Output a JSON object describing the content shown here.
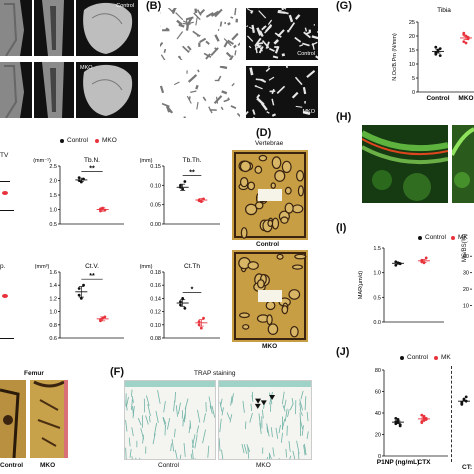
{
  "panels": {
    "B": "(B)",
    "D": "(D)",
    "F": "(F)",
    "G": "(G)",
    "H": "(H)",
    "I": "(I)",
    "J": "(J)"
  },
  "micro_ct": {
    "control_label": "Control",
    "mko_label": "MKO"
  },
  "panel_b": {
    "control_label": "Control",
    "mko_label": "MKO"
  },
  "panel_d": {
    "title": "Vertebrae",
    "control_label": "Control",
    "mko_label": "MKO"
  },
  "femur": {
    "title": "Femur",
    "control_label": "Control",
    "mko_label": "MKO"
  },
  "panel_f": {
    "title": "TRAP staining",
    "control_label": "Control",
    "mko_label": "MKO"
  },
  "legend": {
    "control": "Control",
    "mko": "MKO",
    "mko_truncated": "MK"
  },
  "colors": {
    "control": "#111111",
    "mko": "#e8323c"
  },
  "clipped_titles": {
    "bv_tv": "TV",
    "tb_sp": "p.",
    "ms_bs": "MS/BS(%)",
    "ctx": "CT:"
  },
  "chart_data": [
    {
      "type": "scatter",
      "id": "tb_n",
      "title": "Tb.N.",
      "unit": "(mm⁻¹)",
      "ylim": [
        0.5,
        2.5
      ],
      "yticks": [
        "0.5",
        "1.0",
        "1.5",
        "2.0",
        "2.5"
      ],
      "series": [
        {
          "name": "Control",
          "values": [
            2.0,
            1.95,
            2.05,
            2.1
          ],
          "mean": 2.02,
          "sem": 0.06
        },
        {
          "name": "MKO",
          "values": [
            0.95,
            1.05,
            0.98,
            1.02
          ],
          "mean": 1.0,
          "sem": 0.06
        }
      ],
      "significance": "**"
    },
    {
      "type": "scatter",
      "id": "tb_th",
      "title": "Tb.Th.",
      "unit": "(mm)",
      "ylim": [
        0.0,
        0.15
      ],
      "yticks": [
        "0.00",
        "0.05",
        "0.10",
        "0.15"
      ],
      "series": [
        {
          "name": "Control",
          "values": [
            0.1,
            0.09,
            0.11,
            0.095
          ],
          "mean": 0.095,
          "sem": 0.008
        },
        {
          "name": "MKO",
          "values": [
            0.06,
            0.058,
            0.065,
            0.062
          ],
          "mean": 0.062,
          "sem": 0.004
        }
      ],
      "significance": "**"
    },
    {
      "type": "scatter",
      "id": "ct_v",
      "title": "Ct.V.",
      "unit": "(mm³)",
      "ylim": [
        0.6,
        1.6
      ],
      "yticks": [
        "0.6",
        "0.8",
        "1.0",
        "1.2",
        "1.4",
        "1.6"
      ],
      "series": [
        {
          "name": "Control",
          "values": [
            1.35,
            1.2,
            1.4,
            1.25
          ],
          "mean": 1.3,
          "sem": 0.08
        },
        {
          "name": "MKO",
          "values": [
            0.88,
            0.9,
            0.92,
            0.86
          ],
          "mean": 0.89,
          "sem": 0.03
        }
      ],
      "significance": "**"
    },
    {
      "type": "scatter",
      "id": "ct_th",
      "title": "Ct.Th",
      "unit": "(mm)",
      "ylim": [
        0.08,
        0.18
      ],
      "yticks": [
        "0.08",
        "0.10",
        "0.12",
        "0.14",
        "0.16",
        "0.18"
      ],
      "series": [
        {
          "name": "Control",
          "values": [
            0.13,
            0.14,
            0.125,
            0.135
          ],
          "mean": 0.133,
          "sem": 0.005
        },
        {
          "name": "MKO",
          "values": [
            0.1,
            0.095,
            0.11,
            0.105
          ],
          "mean": 0.103,
          "sem": 0.005
        }
      ],
      "significance": "*"
    },
    {
      "type": "scatter",
      "id": "n_oc",
      "title": "Tibia",
      "ylabel": "N.Oc/B.Pm (N/mm)",
      "ylim": [
        0,
        25
      ],
      "yticks": [
        "0",
        "5",
        "10",
        "15",
        "20",
        "25"
      ],
      "categories": [
        "Control",
        "MKO"
      ],
      "series": [
        {
          "name": "Control",
          "values": [
            14,
            15,
            13,
            16,
            14.5,
            15.5,
            13.5
          ],
          "mean": 14.5,
          "sem": 0.6
        },
        {
          "name": "MKO",
          "values": [
            18,
            20,
            19,
            21,
            17.5,
            19.5,
            20.5
          ],
          "mean": 19.3,
          "sem": 0.6
        }
      ]
    },
    {
      "type": "scatter",
      "id": "mar",
      "ylabel": "MAR(μm/d)",
      "ylim": [
        0.0,
        1.5
      ],
      "yticks": [
        "0.0",
        "0.5",
        "1.0",
        "1.5"
      ],
      "series": [
        {
          "name": "Control",
          "values": [
            1.15,
            1.2,
            1.18,
            1.22
          ],
          "mean": 1.19,
          "sem": 0.02
        },
        {
          "name": "MKO",
          "values": [
            1.25,
            1.2,
            1.3,
            1.22
          ],
          "mean": 1.24,
          "sem": 0.03
        }
      ],
      "right_axis_label": "MS/BS(%)",
      "right_ticks": [
        "10",
        "20",
        "30",
        "40"
      ]
    },
    {
      "type": "scatter",
      "id": "serum",
      "ylim": [
        0,
        80
      ],
      "yticks": [
        "0",
        "20",
        "40",
        "60",
        "80"
      ],
      "categories": [
        "P1NP (ng/mL)",
        "CTX"
      ],
      "series": [
        {
          "name": "Control",
          "values": [
            30,
            33,
            28,
            35,
            31,
            29,
            32,
            34
          ],
          "mean": 31.5,
          "sem": 1.0
        },
        {
          "name": "MKO",
          "values": [
            32,
            36,
            34,
            38,
            33,
            35,
            31,
            37
          ],
          "mean": 34.5,
          "sem": 1.0
        }
      ],
      "ctx_values": [
        48,
        52,
        55,
        50,
        53,
        51,
        49
      ]
    }
  ]
}
